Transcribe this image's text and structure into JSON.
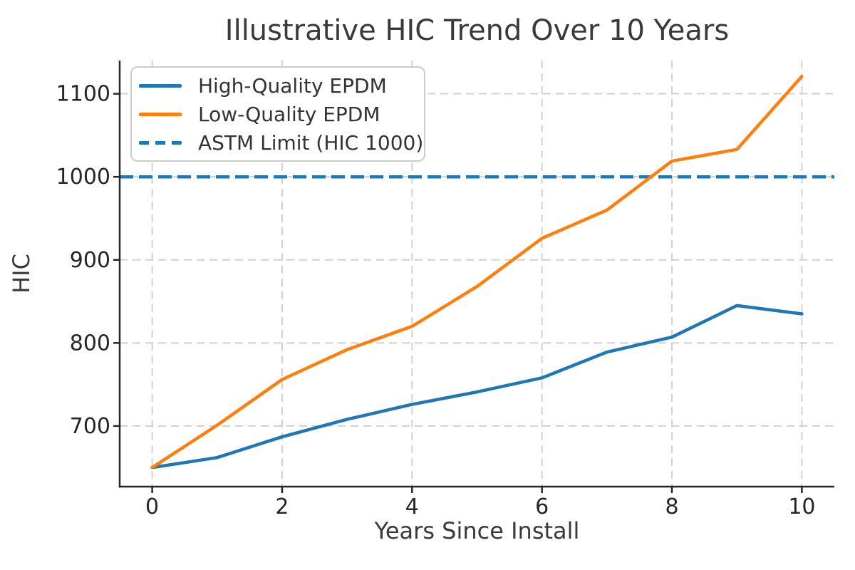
{
  "figure": {
    "background": "#ffffff"
  },
  "chart_data": {
    "type": "line",
    "title": "Illustrative HIC Trend Over 10 Years",
    "xlabel": "Years Since Install",
    "ylabel": "HIC",
    "x": [
      0,
      1,
      2,
      3,
      4,
      5,
      6,
      7,
      8,
      9,
      10
    ],
    "series": [
      {
        "name": "High-Quality EPDM",
        "color": "#1f77b4",
        "line_style": "solid",
        "values": [
          650,
          662,
          687,
          708,
          726,
          741,
          758,
          789,
          807,
          845,
          835
        ]
      },
      {
        "name": "Low-Quality EPDM",
        "color": "#ff7f0e",
        "line_style": "solid",
        "values": [
          650,
          701,
          756,
          792,
          820,
          868,
          926,
          960,
          1019,
          1033,
          1121
        ]
      }
    ],
    "reference_line": {
      "name": "ASTM Limit (HIC 1000)",
      "value": 1000,
      "color": "#1f77b4",
      "line_style": "dashed"
    },
    "xticks": [
      0,
      2,
      4,
      6,
      8,
      10
    ],
    "yticks": [
      700,
      800,
      900,
      1000,
      1100
    ],
    "xlim": [
      -0.5,
      10.5
    ],
    "ylim": [
      627,
      1140
    ],
    "grid": true,
    "grid_style": "dashed",
    "legend_position": "upper-left",
    "axis_color": "#262626",
    "grid_color": "#cccccc",
    "text_color": "#3a3a3a"
  }
}
